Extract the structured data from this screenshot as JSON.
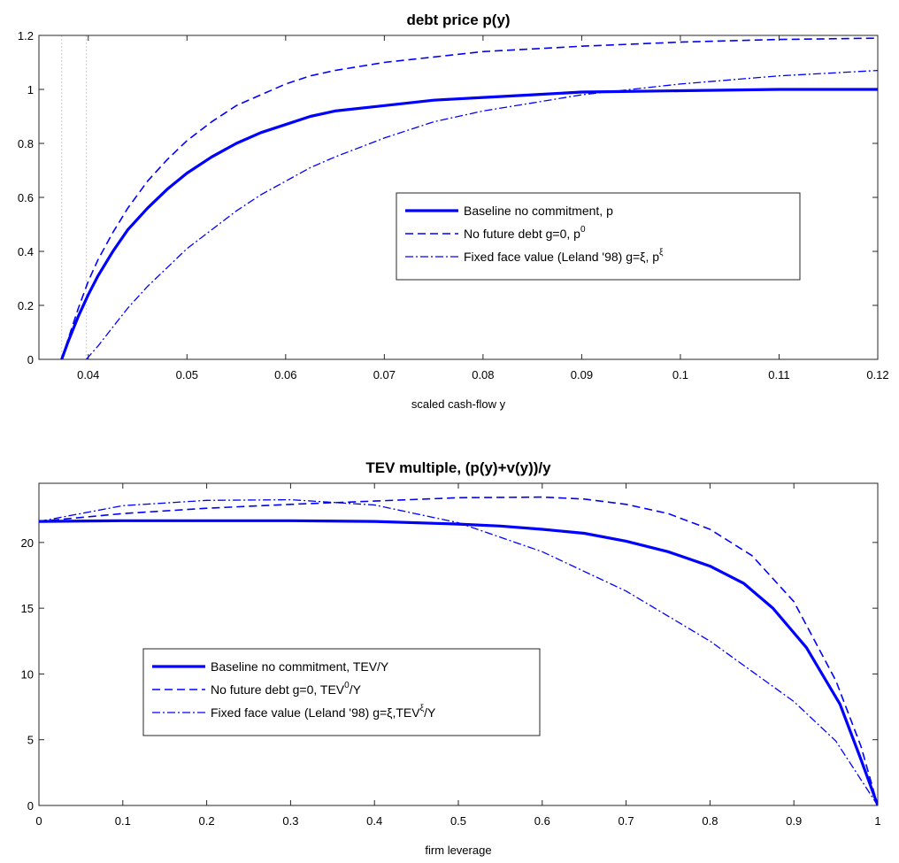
{
  "chart_data": [
    {
      "type": "line",
      "title": "debt price p(y)",
      "xlabel": "scaled cash-flow y",
      "ylabel": "",
      "xlim": [
        0.035,
        0.12
      ],
      "ylim": [
        0,
        1.2
      ],
      "x_ticks": [
        0.04,
        0.05,
        0.06,
        0.07,
        0.08,
        0.09,
        0.1,
        0.11,
        0.12
      ],
      "x_tick_labels": [
        "0.04",
        "0.05",
        "0.06",
        "0.07",
        "0.08",
        "0.09",
        "0.1",
        "0.11",
        "0.12"
      ],
      "y_ticks": [
        0,
        0.2,
        0.4,
        0.6,
        0.8,
        1,
        1.2
      ],
      "y_tick_labels": [
        "0",
        "0.2",
        "0.4",
        "0.6",
        "0.8",
        "1",
        "1.2"
      ],
      "grid": false,
      "legend_position": "center-right",
      "vertical_reference_lines": [
        0.0373,
        0.0398
      ],
      "series": [
        {
          "name": "Baseline no commitment, p",
          "legend_main": "Baseline no commitment, p",
          "legend_sup": "",
          "legend_tail": "",
          "style": "solid",
          "x": [
            0.0373,
            0.038,
            0.039,
            0.04,
            0.041,
            0.0425,
            0.044,
            0.046,
            0.048,
            0.05,
            0.0525,
            0.055,
            0.0575,
            0.06,
            0.0625,
            0.065,
            0.07,
            0.075,
            0.08,
            0.085,
            0.09,
            0.1,
            0.11,
            0.12
          ],
          "y": [
            0,
            0.07,
            0.16,
            0.24,
            0.31,
            0.4,
            0.48,
            0.56,
            0.63,
            0.69,
            0.75,
            0.8,
            0.84,
            0.87,
            0.9,
            0.92,
            0.94,
            0.96,
            0.97,
            0.98,
            0.99,
            0.995,
            1.0,
            1.0
          ]
        },
        {
          "name": "No future debt g=0, p0",
          "legend_main": "No future debt g=0, p",
          "legend_sup": "0",
          "legend_tail": "",
          "style": "dashed",
          "x": [
            0.0373,
            0.038,
            0.039,
            0.04,
            0.041,
            0.0425,
            0.044,
            0.046,
            0.048,
            0.05,
            0.0525,
            0.055,
            0.0575,
            0.06,
            0.0625,
            0.065,
            0.07,
            0.075,
            0.08,
            0.085,
            0.09,
            0.1,
            0.11,
            0.12
          ],
          "y": [
            0,
            0.08,
            0.19,
            0.29,
            0.37,
            0.47,
            0.56,
            0.66,
            0.74,
            0.81,
            0.88,
            0.94,
            0.98,
            1.02,
            1.05,
            1.07,
            1.1,
            1.12,
            1.14,
            1.15,
            1.16,
            1.175,
            1.185,
            1.19
          ]
        },
        {
          "name": "Fixed face value (Leland '98) g=ξ, pξ",
          "legend_main": "Fixed face value (Leland '98) g=ξ, p",
          "legend_sup": "ξ",
          "legend_tail": "",
          "style": "dashdot",
          "x": [
            0.0398,
            0.041,
            0.0425,
            0.044,
            0.046,
            0.048,
            0.05,
            0.0525,
            0.055,
            0.0575,
            0.06,
            0.0625,
            0.065,
            0.07,
            0.075,
            0.08,
            0.085,
            0.09,
            0.095,
            0.1,
            0.105,
            0.11,
            0.115,
            0.12
          ],
          "y": [
            0,
            0.05,
            0.12,
            0.19,
            0.27,
            0.34,
            0.41,
            0.48,
            0.55,
            0.61,
            0.66,
            0.71,
            0.75,
            0.82,
            0.88,
            0.92,
            0.95,
            0.98,
            1.0,
            1.02,
            1.035,
            1.05,
            1.06,
            1.07
          ]
        }
      ]
    },
    {
      "type": "line",
      "title": "TEV multiple, (p(y)+v(y))/y",
      "xlabel": "firm leverage",
      "ylabel": "",
      "xlim": [
        0,
        1
      ],
      "ylim": [
        0,
        24.5
      ],
      "x_ticks": [
        0,
        0.1,
        0.2,
        0.3,
        0.4,
        0.5,
        0.6,
        0.7,
        0.8,
        0.9,
        1
      ],
      "x_tick_labels": [
        "0",
        "0.1",
        "0.2",
        "0.3",
        "0.4",
        "0.5",
        "0.6",
        "0.7",
        "0.8",
        "0.9",
        "1"
      ],
      "y_ticks": [
        0,
        5,
        10,
        15,
        20
      ],
      "y_tick_labels": [
        "0",
        "5",
        "10",
        "15",
        "20"
      ],
      "grid": false,
      "legend_position": "bottom-left",
      "series": [
        {
          "name": "Baseline no commitment, TEV/Y",
          "legend_main": "Baseline no commitment, TEV/Y",
          "legend_sup": "",
          "legend_tail": "",
          "style": "solid",
          "x": [
            0,
            0.1,
            0.2,
            0.3,
            0.4,
            0.5,
            0.55,
            0.6,
            0.65,
            0.7,
            0.75,
            0.8,
            0.84,
            0.875,
            0.915,
            0.955,
            0.98,
            1.0
          ],
          "y": [
            21.6,
            21.65,
            21.65,
            21.65,
            21.6,
            21.4,
            21.25,
            21.0,
            20.7,
            20.1,
            19.3,
            18.2,
            16.9,
            15.0,
            12.0,
            7.7,
            3.5,
            0
          ]
        },
        {
          "name": "No future debt g=0, TEV0/Y",
          "legend_main": "No future debt g=0, TEV",
          "legend_sup": "0",
          "legend_tail": "/Y",
          "style": "dashed",
          "x": [
            0,
            0.1,
            0.2,
            0.3,
            0.4,
            0.5,
            0.6,
            0.65,
            0.7,
            0.75,
            0.8,
            0.85,
            0.9,
            0.95,
            0.98,
            1.0
          ],
          "y": [
            21.6,
            22.2,
            22.6,
            22.9,
            23.15,
            23.4,
            23.45,
            23.3,
            22.9,
            22.2,
            21.0,
            19.0,
            15.5,
            9.5,
            4.5,
            0
          ]
        },
        {
          "name": "Fixed face value (Leland '98) g=ξ,TEVξ/Y",
          "legend_main": "Fixed face value (Leland '98) g=ξ,TEV",
          "legend_sup": "ξ",
          "legend_tail": "/Y",
          "style": "dashdot",
          "x": [
            0,
            0.1,
            0.2,
            0.3,
            0.4,
            0.5,
            0.6,
            0.7,
            0.8,
            0.9,
            0.95,
            1.0
          ],
          "y": [
            21.6,
            22.8,
            23.2,
            23.25,
            22.85,
            21.5,
            19.3,
            16.3,
            12.5,
            7.9,
            4.9,
            0
          ]
        }
      ]
    }
  ],
  "colors": {
    "series_color": "#0000ff",
    "axis_color": "#262626",
    "reference_line_color": "#d4d4d4"
  }
}
